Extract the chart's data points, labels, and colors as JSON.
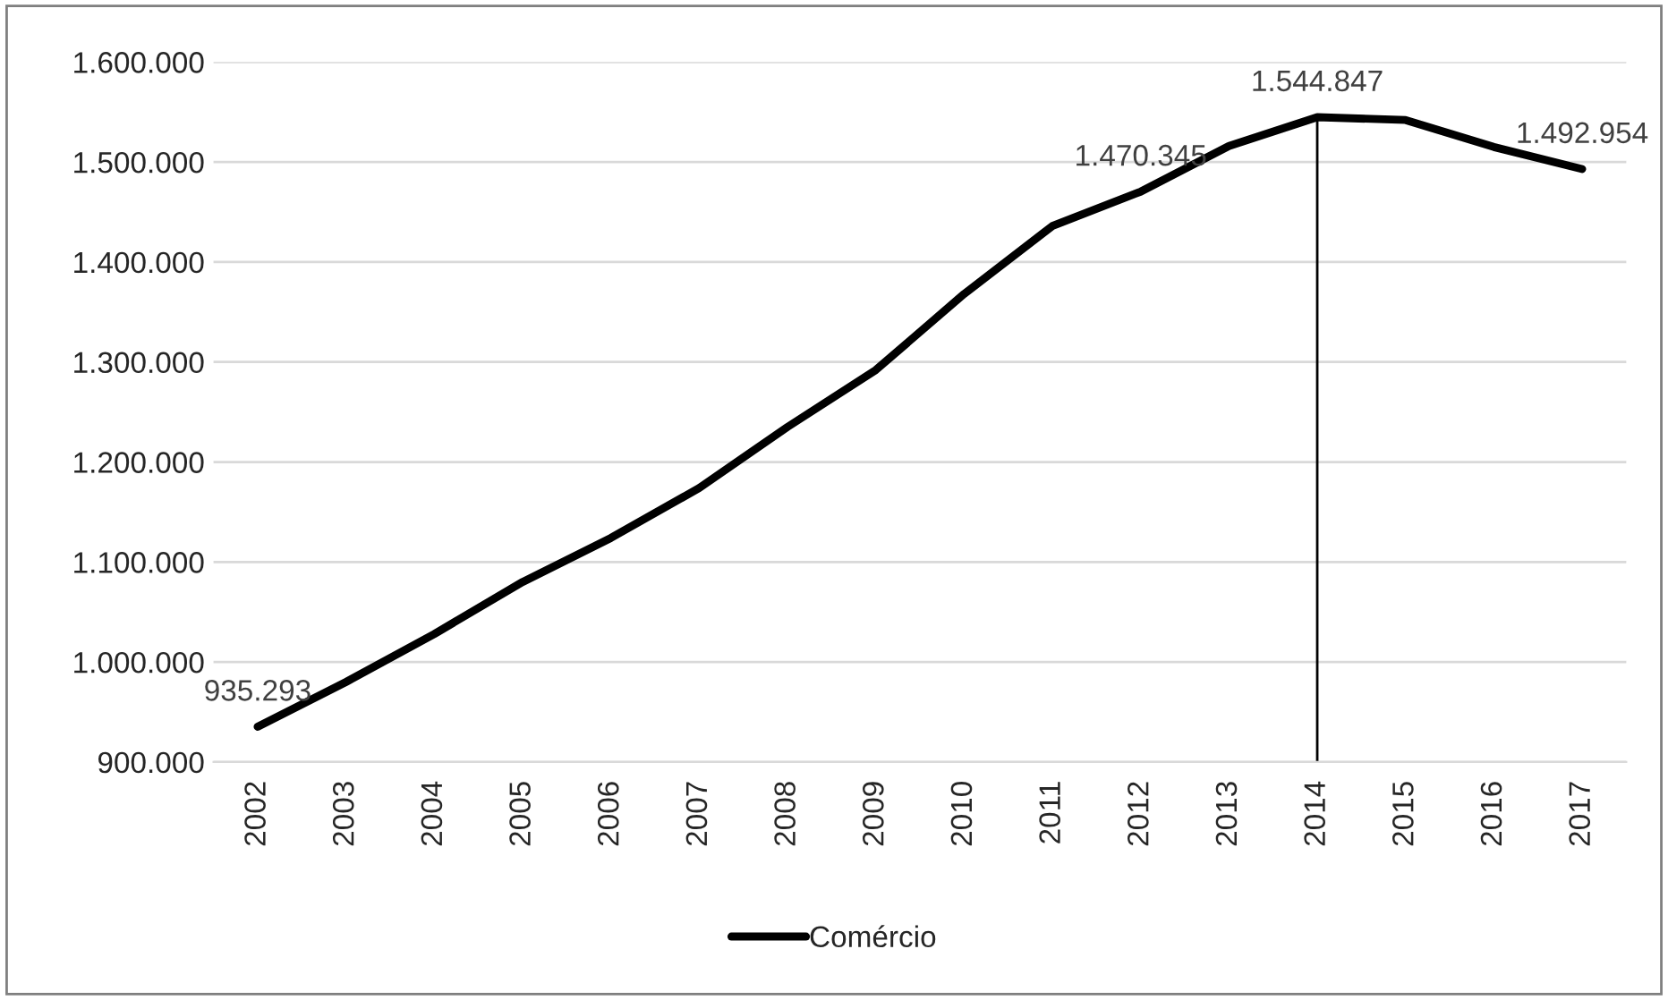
{
  "chart_data": {
    "type": "line",
    "categories": [
      "2002",
      "2003",
      "2004",
      "2005",
      "2006",
      "2007",
      "2008",
      "2009",
      "2010",
      "2011",
      "2012",
      "2013",
      "2014",
      "2015",
      "2016",
      "2017"
    ],
    "series": [
      {
        "name": "Comércio",
        "color": "#000000",
        "values": [
          935293,
          980000,
          1028000,
          1080000,
          1124000,
          1174000,
          1235000,
          1292000,
          1368000,
          1436000,
          1470345,
          1516000,
          1544847,
          1542000,
          1515000,
          1492954
        ],
        "value_labels": [
          "935.293",
          null,
          null,
          null,
          null,
          null,
          null,
          null,
          null,
          null,
          "1.470.345",
          null,
          "1.544.847",
          null,
          null,
          "1.492.954"
        ]
      }
    ],
    "ylim": [
      900000,
      1600000
    ],
    "yticks": [
      {
        "value": 900000,
        "label": "900.000"
      },
      {
        "value": 1000000,
        "label": "1.000.000"
      },
      {
        "value": 1100000,
        "label": "1.100.000"
      },
      {
        "value": 1200000,
        "label": "1.200.000"
      },
      {
        "value": 1300000,
        "label": "1.300.000"
      },
      {
        "value": 1400000,
        "label": "1.400.000"
      },
      {
        "value": 1500000,
        "label": "1.500.000"
      },
      {
        "value": 1600000,
        "label": "1.600.000"
      }
    ],
    "grid": "y",
    "legend": "bottom",
    "marker": "none",
    "line_style": "solid",
    "ref_lines": [
      {
        "axis": "x",
        "value": "2014",
        "color": "#000000"
      }
    ]
  }
}
